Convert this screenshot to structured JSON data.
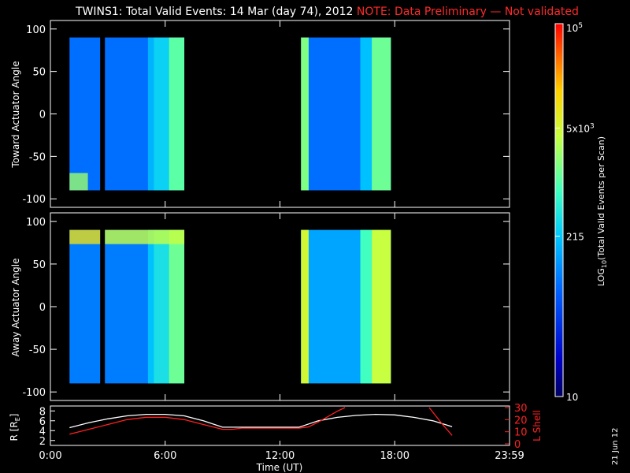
{
  "title": {
    "main": "TWINS1: Total Valid Events: 14 Mar (day  74), 2012",
    "note": "NOTE: Data Preliminary — Not validated"
  },
  "stamp": "21 Jun 12",
  "chart_data": [
    {
      "type": "heatmap",
      "ylabel": "Toward Actuator Angle",
      "ylim": [
        -110,
        110
      ],
      "yticks": [
        -100,
        -50,
        0,
        50,
        100
      ],
      "xlim": [
        0,
        24
      ],
      "segments": [
        {
          "x": [
            1.0,
            2.6
          ],
          "y": [
            -90,
            90
          ],
          "level": 0.3,
          "low_edge_level": 0.65
        },
        {
          "x": [
            2.85,
            7.0
          ],
          "y": [
            -90,
            90
          ],
          "level": 0.3,
          "bands": [
            {
              "x": [
                5.1,
                5.4
              ],
              "level": 0.4
            },
            {
              "x": [
                5.4,
                6.2
              ],
              "level": 0.45
            },
            {
              "x": [
                6.2,
                7.0
              ],
              "level": 0.58
            }
          ]
        },
        {
          "x": [
            13.1,
            17.8
          ],
          "y": [
            -90,
            90
          ],
          "level": 0.3,
          "bands": [
            {
              "x": [
                13.1,
                13.5
              ],
              "level": 0.62
            },
            {
              "x": [
                16.2,
                16.8
              ],
              "level": 0.42
            },
            {
              "x": [
                16.8,
                17.8
              ],
              "level": 0.6
            }
          ]
        }
      ]
    },
    {
      "type": "heatmap",
      "ylabel": "Away Actuator Angle",
      "ylim": [
        -110,
        110
      ],
      "yticks": [
        -100,
        -50,
        0,
        50,
        100
      ],
      "xlim": [
        0,
        24
      ],
      "segments": [
        {
          "x": [
            1.0,
            2.6
          ],
          "y": [
            -90,
            90
          ],
          "level": 0.32,
          "high_edge_level": 0.78
        },
        {
          "x": [
            2.85,
            7.0
          ],
          "y": [
            -90,
            90
          ],
          "level": 0.32,
          "high_edge_level": 0.7,
          "bands": [
            {
              "x": [
                5.1,
                5.4
              ],
              "level": 0.42
            },
            {
              "x": [
                5.4,
                6.2
              ],
              "level": 0.48
            },
            {
              "x": [
                6.2,
                7.0
              ],
              "level": 0.6
            }
          ]
        },
        {
          "x": [
            13.1,
            17.8
          ],
          "y": [
            -90,
            90
          ],
          "level": 0.38,
          "bands": [
            {
              "x": [
                13.1,
                13.5
              ],
              "level": 0.72
            },
            {
              "x": [
                16.2,
                16.8
              ],
              "level": 0.55
            },
            {
              "x": [
                16.8,
                17.8
              ],
              "level": 0.7
            }
          ]
        }
      ]
    },
    {
      "type": "line",
      "xlabel": "Time (UT)",
      "xlim": [
        0,
        24
      ],
      "xticks": [
        "0:00",
        "6:00",
        "12:00",
        "18:00",
        "23:59"
      ],
      "xtick_values": [
        0,
        6,
        12,
        18,
        24
      ],
      "left_ylabel": "R [R",
      "left_ylabel_sub": "E",
      "left_ylim": [
        1,
        9
      ],
      "left_yticks": [
        2,
        4,
        6,
        8
      ],
      "right_ylabel": "L Shell",
      "right_ylim": [
        0,
        30
      ],
      "right_yticks": [
        0,
        10,
        20,
        30
      ],
      "series": [
        {
          "axis": "left",
          "color": "#ffffff",
          "x": [
            1.0,
            2.0,
            3.0,
            4.0,
            5.0,
            6.0,
            7.0,
            8.0,
            9.0,
            10.0,
            11.0,
            12.0,
            13.0,
            14.0,
            15.0,
            16.0,
            17.0,
            18.0,
            19.0,
            20.0,
            21.0
          ],
          "y": [
            4.6,
            5.6,
            6.4,
            7.0,
            7.3,
            7.3,
            7.0,
            6.0,
            4.7,
            4.7,
            4.7,
            4.7,
            4.7,
            6.0,
            6.7,
            7.1,
            7.3,
            7.2,
            6.7,
            6.0,
            4.8
          ]
        },
        {
          "axis": "right",
          "color": "#ff2020",
          "x": [
            1.0,
            2.0,
            3.0,
            4.0,
            5.0,
            6.0,
            7.0,
            8.0,
            9.0,
            9.5,
            10.0,
            11.0,
            12.0,
            13.0,
            13.5,
            14.0,
            15.0,
            15.4
          ],
          "y": [
            8,
            12,
            16,
            20,
            22,
            22,
            20,
            16,
            12,
            12,
            13,
            13,
            13,
            13,
            14,
            18,
            27,
            30
          ]
        },
        {
          "axis": "right",
          "color": "#ff2020",
          "x": [
            19.8,
            20.5,
            21.0
          ],
          "y": [
            30,
            16,
            7
          ]
        }
      ]
    },
    {
      "type": "colorbar",
      "label": "LOG",
      "label_sub": "10",
      "label_rest": "(Total Valid  Events per Scan)",
      "ticks": [
        {
          "pos": 0.0,
          "text": "10"
        },
        {
          "pos": 0.43,
          "text": "215"
        },
        {
          "pos": 0.72,
          "text": "5x10",
          "sup": "3"
        },
        {
          "pos": 1.0,
          "text": "10",
          "sup": "5"
        }
      ]
    }
  ]
}
